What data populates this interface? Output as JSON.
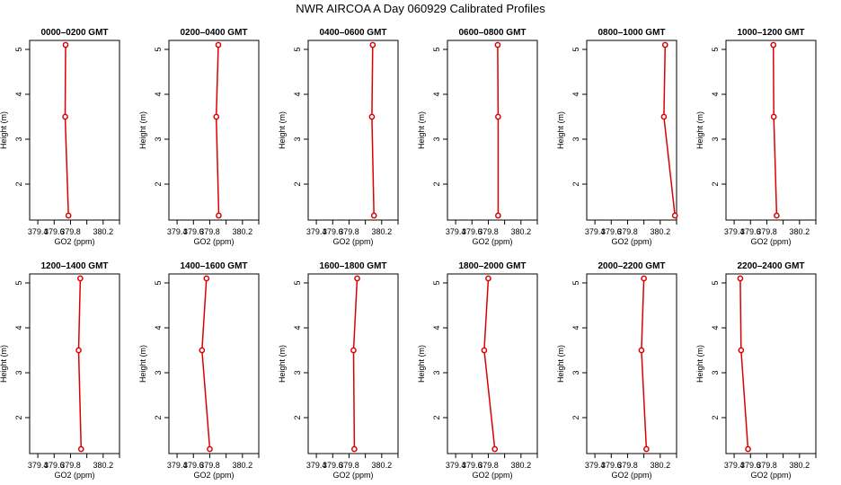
{
  "figure": {
    "title": "NWR AIRCOA A  Day 060929  Calibrated Profiles"
  },
  "chart_data": [
    {
      "type": "line",
      "title": "0000–0200 GMT",
      "xlabel": "GO2 (ppm)",
      "ylabel": "Height (m)",
      "xlim": [
        379.3,
        380.4
      ],
      "ylim": [
        1.2,
        5.2
      ],
      "xticks": [
        "379.4",
        "379.6",
        "379.8",
        "380.0",
        "380.2",
        "380.4"
      ],
      "yticks": [
        "2",
        "3",
        "4",
        "5"
      ],
      "series": [
        {
          "x": [
            379.775,
            379.735,
            379.74
          ],
          "y": [
            1.3,
            3.5,
            5.1
          ]
        }
      ]
    },
    {
      "type": "line",
      "title": "0200–0400 GMT",
      "xlabel": "GO2 (ppm)",
      "ylabel": "Height (m)",
      "xlim": [
        379.3,
        380.4
      ],
      "ylim": [
        1.2,
        5.2
      ],
      "xticks": [
        "379.4",
        "379.6",
        "379.8",
        "380.0",
        "380.2",
        "380.4"
      ],
      "yticks": [
        "2",
        "3",
        "4",
        "5"
      ],
      "series": [
        {
          "x": [
            379.91,
            379.88,
            379.905
          ],
          "y": [
            1.3,
            3.5,
            5.1
          ]
        }
      ]
    },
    {
      "type": "line",
      "title": "0400–0600 GMT",
      "xlabel": "GO2 (ppm)",
      "ylabel": "Height (m)",
      "xlim": [
        379.3,
        380.4
      ],
      "ylim": [
        1.2,
        5.2
      ],
      "xticks": [
        "379.4",
        "379.6",
        "379.8",
        "380.0",
        "380.2",
        "380.4"
      ],
      "yticks": [
        "2",
        "3",
        "4",
        "5"
      ],
      "series": [
        {
          "x": [
            380.105,
            380.08,
            380.09
          ],
          "y": [
            1.3,
            3.5,
            5.1
          ]
        }
      ]
    },
    {
      "type": "line",
      "title": "0600–0800 GMT",
      "xlabel": "GO2 (ppm)",
      "ylabel": "Height (m)",
      "xlim": [
        379.3,
        380.4
      ],
      "ylim": [
        1.2,
        5.2
      ],
      "xticks": [
        "379.4",
        "379.6",
        "379.8",
        "380.0",
        "380.2",
        "380.4"
      ],
      "yticks": [
        "2",
        "3",
        "4",
        "5"
      ],
      "series": [
        {
          "x": [
            379.92,
            379.92,
            379.915
          ],
          "y": [
            1.3,
            3.5,
            5.1
          ]
        }
      ]
    },
    {
      "type": "line",
      "title": "0800–1000 GMT",
      "xlabel": "GO2 (ppm)",
      "ylabel": "Height (m)",
      "xlim": [
        379.3,
        380.4
      ],
      "ylim": [
        1.2,
        5.2
      ],
      "xticks": [
        "379.4",
        "379.6",
        "379.8",
        "380.0",
        "380.2",
        "380.4"
      ],
      "yticks": [
        "2",
        "3",
        "4",
        "5"
      ],
      "series": [
        {
          "x": [
            380.38,
            380.245,
            380.26
          ],
          "y": [
            1.3,
            3.5,
            5.1
          ]
        }
      ]
    },
    {
      "type": "line",
      "title": "1000–1200 GMT",
      "xlabel": "GO2 (ppm)",
      "ylabel": "Height (m)",
      "xlim": [
        379.3,
        380.4
      ],
      "ylim": [
        1.2,
        5.2
      ],
      "xticks": [
        "379.4",
        "379.6",
        "379.8",
        "380.0",
        "380.2",
        "380.4"
      ],
      "yticks": [
        "2",
        "3",
        "4",
        "5"
      ],
      "series": [
        {
          "x": [
            379.92,
            379.885,
            379.88
          ],
          "y": [
            1.3,
            3.5,
            5.1
          ]
        }
      ]
    },
    {
      "type": "line",
      "title": "1200–1400 GMT",
      "xlabel": "GO2 (ppm)",
      "ylabel": "Height (m)",
      "xlim": [
        379.3,
        380.4
      ],
      "ylim": [
        1.2,
        5.2
      ],
      "xticks": [
        "379.4",
        "379.6",
        "379.8",
        "380.0",
        "380.2",
        "380.4"
      ],
      "yticks": [
        "2",
        "3",
        "4",
        "5"
      ],
      "series": [
        {
          "x": [
            379.93,
            379.9,
            379.92
          ],
          "y": [
            1.3,
            3.5,
            5.1
          ]
        }
      ]
    },
    {
      "type": "line",
      "title": "1400–1600 GMT",
      "xlabel": "GO2 (ppm)",
      "ylabel": "Height (m)",
      "xlim": [
        379.3,
        380.4
      ],
      "ylim": [
        1.2,
        5.2
      ],
      "xticks": [
        "379.4",
        "379.6",
        "379.8",
        "380.0",
        "380.2",
        "380.4"
      ],
      "yticks": [
        "2",
        "3",
        "4",
        "5"
      ],
      "series": [
        {
          "x": [
            379.8,
            379.705,
            379.76
          ],
          "y": [
            1.3,
            3.5,
            5.1
          ]
        }
      ]
    },
    {
      "type": "line",
      "title": "1600–1800 GMT",
      "xlabel": "GO2 (ppm)",
      "ylabel": "Height (m)",
      "xlim": [
        379.3,
        380.4
      ],
      "ylim": [
        1.2,
        5.2
      ],
      "xticks": [
        "379.4",
        "379.6",
        "379.8",
        "380.0",
        "380.2",
        "380.4"
      ],
      "yticks": [
        "2",
        "3",
        "4",
        "5"
      ],
      "series": [
        {
          "x": [
            379.865,
            379.855,
            379.9
          ],
          "y": [
            1.3,
            3.5,
            5.1
          ]
        }
      ]
    },
    {
      "type": "line",
      "title": "1800–2000 GMT",
      "xlabel": "GO2 (ppm)",
      "ylabel": "Height (m)",
      "xlim": [
        379.3,
        380.4
      ],
      "ylim": [
        1.2,
        5.2
      ],
      "xticks": [
        "379.4",
        "379.6",
        "379.8",
        "380.0",
        "380.2",
        "380.4"
      ],
      "yticks": [
        "2",
        "3",
        "4",
        "5"
      ],
      "series": [
        {
          "x": [
            379.88,
            379.75,
            379.8
          ],
          "y": [
            1.3,
            3.5,
            5.1
          ]
        }
      ]
    },
    {
      "type": "line",
      "title": "2000–2200 GMT",
      "xlabel": "GO2 (ppm)",
      "ylabel": "Height (m)",
      "xlim": [
        379.3,
        380.4
      ],
      "ylim": [
        1.2,
        5.2
      ],
      "xticks": [
        "379.4",
        "379.6",
        "379.8",
        "380.0",
        "380.2",
        "380.4"
      ],
      "yticks": [
        "2",
        "3",
        "4",
        "5"
      ],
      "series": [
        {
          "x": [
            380.03,
            379.97,
            380.0
          ],
          "y": [
            1.3,
            3.5,
            5.1
          ]
        }
      ]
    },
    {
      "type": "line",
      "title": "2200–2400 GMT",
      "xlabel": "GO2 (ppm)",
      "ylabel": "Height (m)",
      "xlim": [
        379.3,
        380.4
      ],
      "ylim": [
        1.2,
        5.2
      ],
      "xticks": [
        "379.4",
        "379.6",
        "379.8",
        "380.0",
        "380.2",
        "380.4"
      ],
      "yticks": [
        "2",
        "3",
        "4",
        "5"
      ],
      "series": [
        {
          "x": [
            379.57,
            379.485,
            379.475
          ],
          "y": [
            1.3,
            3.5,
            5.1
          ]
        }
      ]
    }
  ],
  "colors": {
    "line": "#dd0000",
    "point_fill": "#ffffff"
  }
}
